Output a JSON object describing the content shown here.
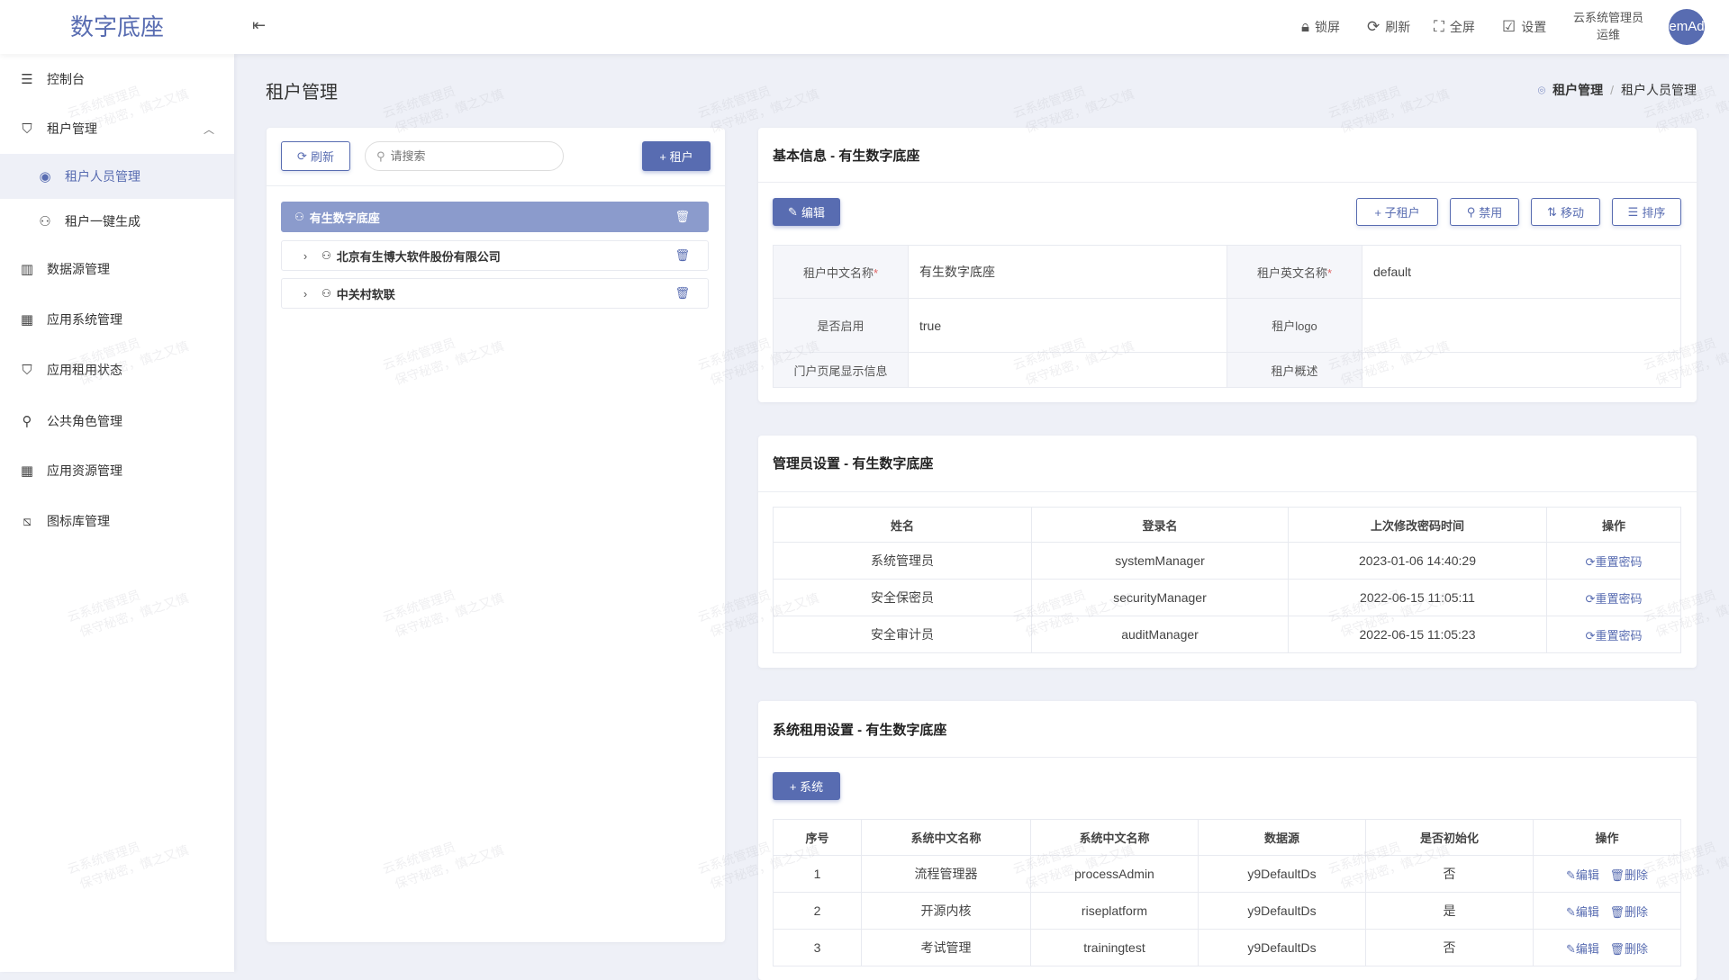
{
  "app": {
    "logo": "数字底座"
  },
  "header": {
    "lock": "锁屏",
    "refresh": "刷新",
    "fullscreen": "全屏",
    "settings": "设置",
    "user_name": "云系统管理员",
    "user_role": "运维",
    "avatar": "emAd"
  },
  "sidebar": {
    "items": [
      {
        "label": "控制台",
        "icon": "sliders-icon"
      },
      {
        "label": "租户管理",
        "icon": "shield-user-icon"
      },
      {
        "label": "租户人员管理",
        "icon": "user-circle-icon"
      },
      {
        "label": "租户一键生成",
        "icon": "user-gear-icon"
      },
      {
        "label": "数据源管理",
        "icon": "database-icon"
      },
      {
        "label": "应用系统管理",
        "icon": "grid-icon"
      },
      {
        "label": "应用租用状态",
        "icon": "shield-check-icon"
      },
      {
        "label": "公共角色管理",
        "icon": "user-list-icon"
      },
      {
        "label": "应用资源管理",
        "icon": "grid-icon"
      },
      {
        "label": "图标库管理",
        "icon": "image-icon"
      }
    ]
  },
  "page": {
    "title": "租户管理",
    "breadcrumb": [
      "租户管理",
      "租户人员管理"
    ]
  },
  "tree": {
    "refresh": "刷新",
    "search_placeholder": "请搜索",
    "add": "+ 租户",
    "nodes": [
      {
        "label": "有生数字底座",
        "selected": true
      },
      {
        "label": "北京有生博大软件股份有限公司",
        "selected": false
      },
      {
        "label": "中关村软联",
        "selected": false
      }
    ]
  },
  "basic": {
    "title": "基本信息 - 有生数字底座",
    "edit": "编辑",
    "sub_tenant": "+ 子租户",
    "disable": "禁用",
    "move": "移动",
    "sort": "排序",
    "fields": {
      "cn_name_label": "租户中文名称",
      "cn_name": "有生数字底座",
      "en_name_label": "租户英文名称",
      "en_name": "default",
      "enabled_label": "是否启用",
      "enabled": "true",
      "logo_label": "租户logo",
      "logo": "",
      "footer_label": "门户页尾显示信息",
      "footer": "",
      "desc_label": "租户概述",
      "desc": ""
    }
  },
  "admins": {
    "title": "管理员设置 - 有生数字底座",
    "columns": [
      "姓名",
      "登录名",
      "上次修改密码时间",
      "操作"
    ],
    "action": "重置密码",
    "rows": [
      [
        "系统管理员",
        "systemManager",
        "2023-01-06 14:40:29"
      ],
      [
        "安全保密员",
        "securityManager",
        "2022-06-15 11:05:11"
      ],
      [
        "安全审计员",
        "auditManager",
        "2022-06-15 11:05:23"
      ]
    ]
  },
  "systems": {
    "title": "系统租用设置 - 有生数字底座",
    "add": "+ 系统",
    "columns": [
      "序号",
      "系统中文名称",
      "系统中文名称",
      "数据源",
      "是否初始化",
      "操作"
    ],
    "edit": "编辑",
    "delete": "删除",
    "rows": [
      [
        "1",
        "流程管理器",
        "processAdmin",
        "y9DefaultDs",
        "否"
      ],
      [
        "2",
        "开源内核",
        "riseplatform",
        "y9DefaultDs",
        "是"
      ],
      [
        "3",
        "考试管理",
        "trainingtest",
        "y9DefaultDs",
        "否"
      ]
    ]
  },
  "watermark": {
    "line1": "云系统管理员",
    "line2": "保守秘密，慎之又慎"
  },
  "colors": {
    "primary": "#586cb1",
    "selected_row": "#8b9bcc",
    "background": "#eef0f7"
  }
}
